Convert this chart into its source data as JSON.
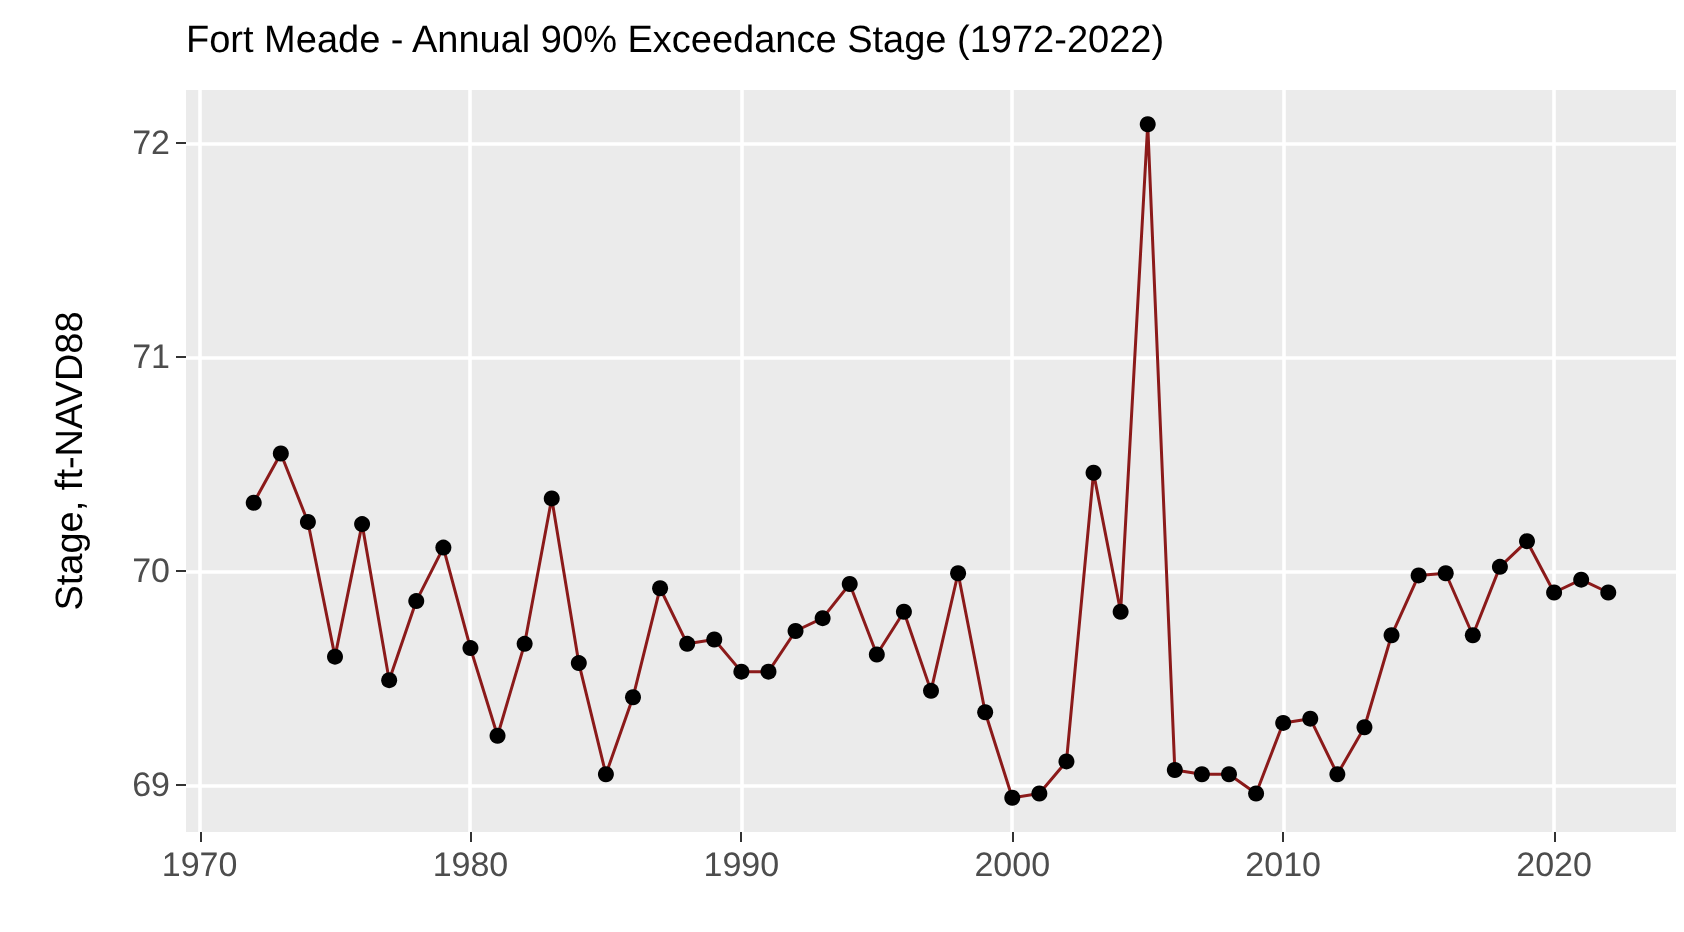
{
  "chart_data": {
    "type": "line",
    "title": "Fort Meade - Annual 90% Exceedance Stage (1972-2022)",
    "ylabel": "Stage, ft-NAVD88",
    "x": [
      1972,
      1973,
      1974,
      1975,
      1976,
      1977,
      1978,
      1979,
      1980,
      1981,
      1982,
      1983,
      1984,
      1985,
      1986,
      1987,
      1988,
      1989,
      1990,
      1991,
      1992,
      1993,
      1994,
      1995,
      1996,
      1997,
      1998,
      1999,
      2000,
      2001,
      2002,
      2003,
      2004,
      2005,
      2006,
      2007,
      2008,
      2009,
      2010,
      2011,
      2012,
      2013,
      2014,
      2015,
      2016,
      2017,
      2018,
      2019,
      2020,
      2021,
      2022
    ],
    "series": [
      {
        "color": "#8b1a1a",
        "values": [
          70.32,
          70.55,
          70.23,
          69.6,
          70.22,
          69.49,
          69.86,
          70.11,
          69.64,
          69.23,
          69.66,
          70.34,
          69.57,
          69.05,
          69.41,
          69.92,
          69.66,
          69.68,
          69.53,
          69.53,
          69.72,
          69.78,
          69.94,
          69.61,
          69.81,
          69.44,
          69.99,
          69.34,
          68.94,
          68.96,
          69.11,
          70.46,
          69.81,
          72.09,
          69.07,
          69.05,
          69.05,
          68.96,
          69.29,
          69.31,
          69.05,
          69.27,
          69.7,
          69.98,
          69.99,
          69.7,
          70.02,
          70.14,
          69.9,
          69.96,
          69.9
        ]
      }
    ],
    "xlim": [
      1969.5,
      2024.5
    ],
    "xticks": [
      1970,
      1980,
      1990,
      2000,
      2010,
      2020
    ],
    "ylim": [
      68.78,
      72.25
    ],
    "yticks": [
      69,
      70,
      71,
      72
    ],
    "grid": true,
    "marker": "circle",
    "line_style": "solid"
  }
}
